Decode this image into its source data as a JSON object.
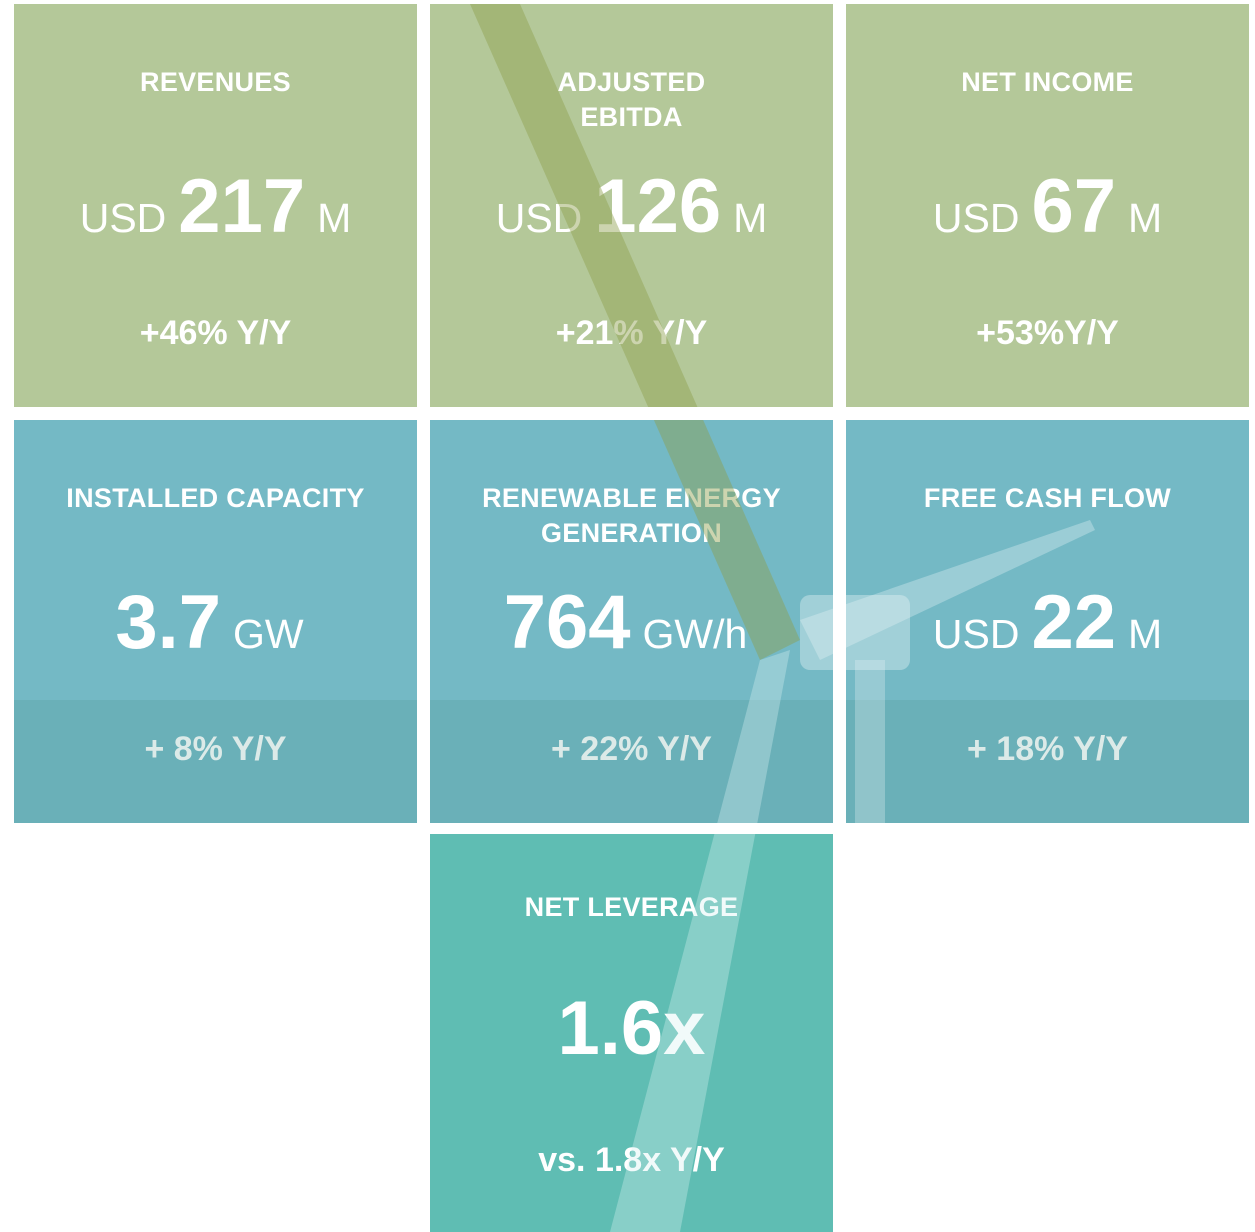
{
  "tiles": [
    {
      "title": [
        "REVENUES"
      ],
      "prefix": "USD",
      "value": "217",
      "unit": "M",
      "change": "+46% Y/Y"
    },
    {
      "title": [
        "ADJUSTED",
        "EBITDA"
      ],
      "prefix": "USD",
      "value": "126",
      "unit": "M",
      "change": "+21% Y/Y"
    },
    {
      "title": [
        "NET INCOME"
      ],
      "prefix": "USD",
      "value": "67",
      "unit": "M",
      "change": "+53%Y/Y"
    },
    {
      "title": [
        "INSTALLED CAPACITY"
      ],
      "value": "3.7",
      "unit": "GW",
      "change": "+ 8% Y/Y"
    },
    {
      "title": [
        "RENEWABLE ENERGY",
        "GENERATION"
      ],
      "value": "764",
      "unit": "GW/h",
      "change": "+ 22% Y/Y"
    },
    {
      "title": [
        "FREE CASH FLOW"
      ],
      "prefix": "USD",
      "value": "22",
      "unit": "M",
      "change": "+ 18% Y/Y"
    },
    {
      "title": [
        "NET LEVERAGE"
      ],
      "value": "1.6x",
      "change": "vs. 1.8x Y/Y"
    }
  ]
}
